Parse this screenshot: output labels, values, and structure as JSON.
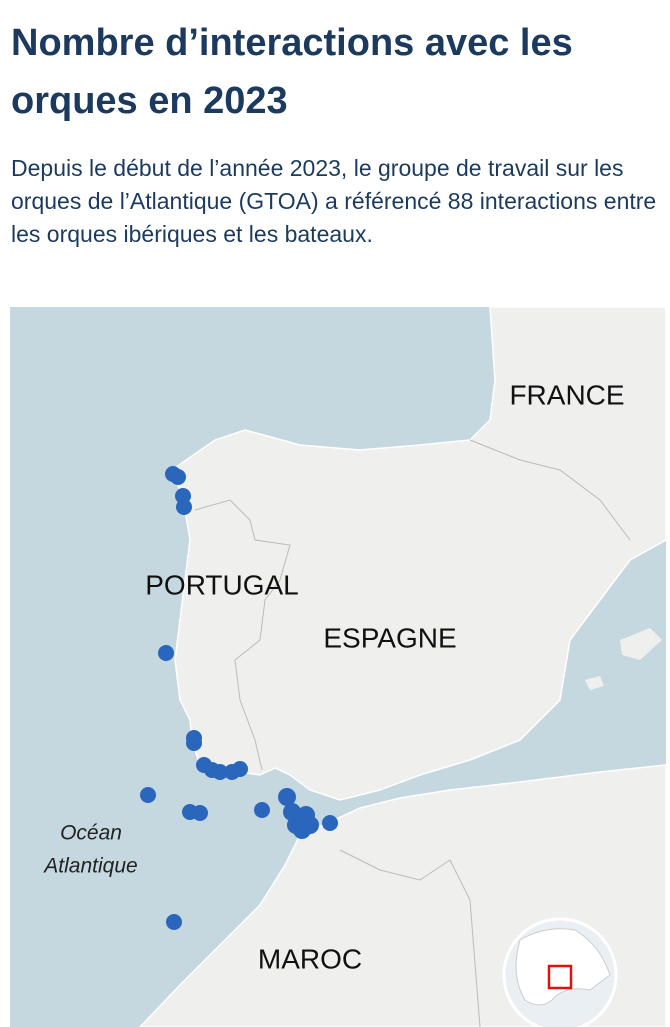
{
  "header": {
    "title": "Nombre d’interactions avec les orques en 2023",
    "subtitle": "Depuis le début de l’année 2023, le groupe de travail sur les orques de l’Atlantique (GTOA) a référencé 88 interactions entre les orques ibériques et les bateaux."
  },
  "map": {
    "labels": [
      "FRANCE",
      "PORTUGAL",
      "ESPAGNE",
      "MAROC"
    ],
    "ocean_label": [
      "Océan",
      "Atlantique"
    ]
  }
}
